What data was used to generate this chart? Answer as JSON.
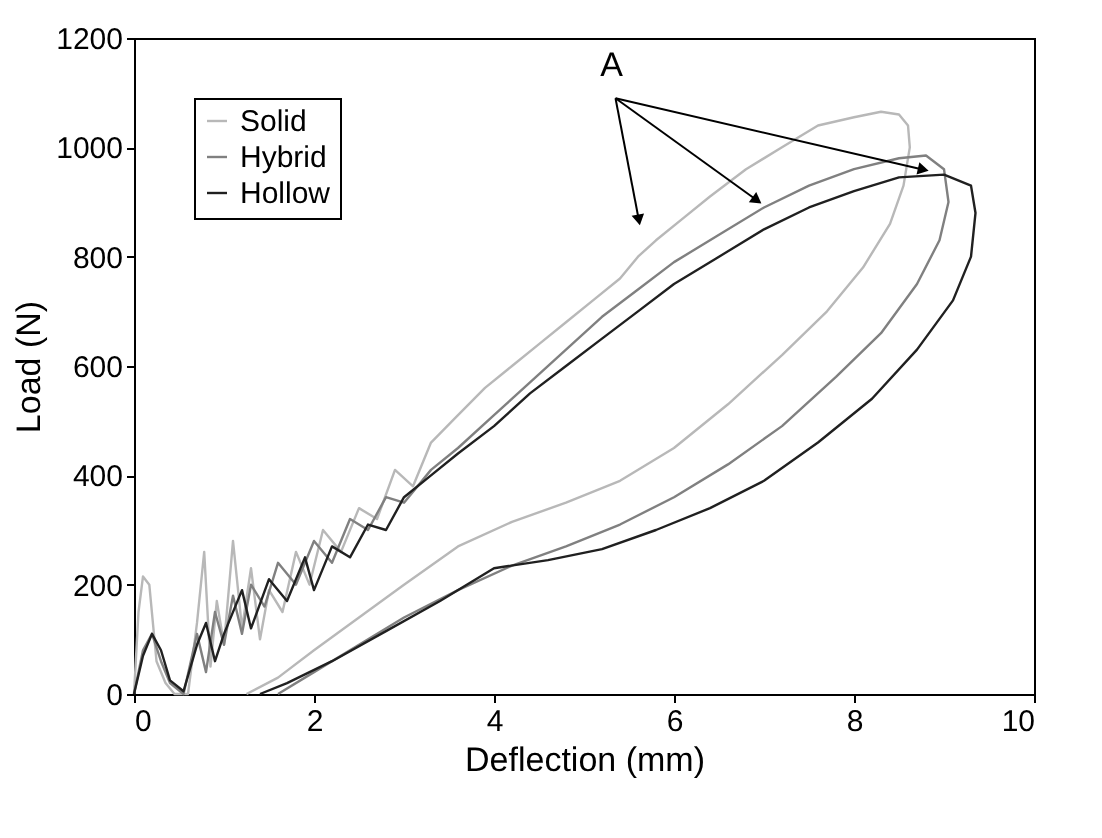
{
  "chart_data": {
    "type": "line",
    "xlabel": "Deflection (mm)",
    "ylabel": "Load (N)",
    "xlim": [
      0,
      10
    ],
    "xticks": [
      0,
      2,
      4,
      6,
      8,
      10
    ],
    "ylim": [
      0,
      1200
    ],
    "yticks": [
      0,
      200,
      400,
      600,
      800,
      {
        "value": 1000,
        "label": "1000"
      },
      {
        "value": 1200,
        "label": "1200"
      }
    ],
    "grid": false,
    "legend": "top left",
    "marker": "none",
    "line_style": "solid",
    "annotations": [
      {
        "text": "A",
        "x": 8.75,
        "y": 960
      }
    ],
    "series": [
      {
        "name": "Solid",
        "color": "#b8b8b8",
        "x": [
          0,
          0.05,
          0.1,
          0.17,
          0.25,
          0.35,
          0.45,
          0.6,
          0.7,
          0.78,
          0.85,
          0.92,
          1.0,
          1.1,
          1.2,
          1.3,
          1.4,
          1.5,
          1.65,
          1.8,
          1.95,
          2.1,
          2.3,
          2.5,
          2.7,
          2.9,
          3.1,
          3.3,
          3.6,
          3.9,
          4.2,
          4.5,
          4.8,
          5.1,
          5.4,
          5.6,
          5.8,
          6.1,
          6.4,
          6.8,
          7.2,
          7.6,
          8.0,
          8.3,
          8.5,
          8.6,
          8.62,
          8.55,
          8.4,
          8.1,
          7.7,
          7.2,
          6.6,
          6.0,
          5.4,
          4.8,
          4.2,
          3.6,
          3.0,
          2.5,
          2.0,
          1.6,
          1.25
        ],
        "values": [
          0,
          150,
          215,
          200,
          60,
          20,
          0,
          0,
          130,
          260,
          50,
          170,
          90,
          280,
          120,
          230,
          100,
          190,
          150,
          260,
          200,
          300,
          260,
          340,
          320,
          410,
          380,
          460,
          510,
          560,
          600,
          640,
          680,
          720,
          760,
          800,
          830,
          870,
          910,
          960,
          1000,
          1040,
          1055,
          1065,
          1060,
          1040,
          1000,
          930,
          860,
          780,
          700,
          620,
          530,
          450,
          390,
          350,
          315,
          270,
          200,
          140,
          80,
          30,
          0
        ]
      },
      {
        "name": "Hybrid",
        "color": "#808080",
        "x": [
          0,
          0.1,
          0.2,
          0.3,
          0.4,
          0.55,
          0.7,
          0.8,
          0.9,
          1.0,
          1.1,
          1.2,
          1.3,
          1.45,
          1.6,
          1.8,
          2.0,
          2.2,
          2.4,
          2.6,
          2.8,
          3.0,
          3.3,
          3.6,
          4.0,
          4.4,
          4.8,
          5.2,
          5.6,
          6.0,
          6.5,
          7.0,
          7.5,
          8.0,
          8.5,
          8.8,
          9.0,
          9.05,
          8.95,
          8.7,
          8.3,
          7.8,
          7.2,
          6.6,
          6.0,
          5.4,
          4.8,
          4.2,
          3.6,
          3.0,
          2.5,
          2.0,
          1.6
        ],
        "values": [
          0,
          80,
          110,
          60,
          20,
          0,
          110,
          40,
          150,
          90,
          180,
          110,
          200,
          160,
          240,
          200,
          280,
          240,
          320,
          300,
          360,
          350,
          410,
          450,
          510,
          570,
          630,
          690,
          740,
          790,
          840,
          890,
          930,
          960,
          980,
          985,
          960,
          900,
          830,
          750,
          660,
          580,
          490,
          420,
          360,
          310,
          270,
          235,
          190,
          140,
          90,
          40,
          0
        ]
      },
      {
        "name": "Hollow",
        "color": "#202020",
        "x": [
          0,
          0.1,
          0.2,
          0.3,
          0.4,
          0.55,
          0.7,
          0.8,
          0.9,
          1.0,
          1.2,
          1.3,
          1.5,
          1.7,
          1.9,
          2.0,
          2.2,
          2.4,
          2.6,
          2.8,
          3.0,
          3.3,
          3.6,
          4.0,
          4.4,
          4.8,
          5.2,
          5.6,
          6.0,
          6.5,
          7.0,
          7.5,
          8.0,
          8.5,
          9.0,
          9.3,
          9.35,
          9.3,
          9.1,
          8.7,
          8.2,
          7.6,
          7.0,
          6.4,
          5.8,
          5.2,
          4.6,
          4.0,
          3.4,
          2.8,
          2.2,
          1.7,
          1.4
        ],
        "values": [
          0,
          70,
          110,
          80,
          25,
          5,
          90,
          130,
          60,
          110,
          190,
          120,
          210,
          170,
          250,
          190,
          270,
          250,
          310,
          300,
          360,
          400,
          440,
          490,
          550,
          600,
          650,
          700,
          750,
          800,
          850,
          890,
          920,
          945,
          950,
          930,
          880,
          800,
          720,
          630,
          540,
          460,
          390,
          340,
          300,
          265,
          245,
          230,
          170,
          115,
          60,
          20,
          0
        ]
      }
    ]
  }
}
